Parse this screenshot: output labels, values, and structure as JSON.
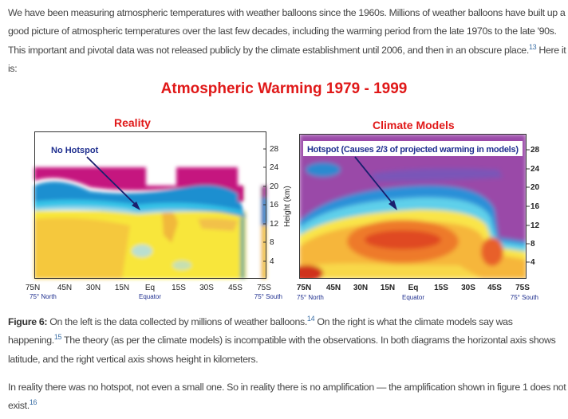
{
  "intro": {
    "text": "We have been measuring atmospheric temperatures with weather balloons since the 1960s. Millions of weather balloons have built up a good picture of atmospheric temperatures over the last few decades, including the warming period from the late 1970s to the late '90s. This important and pivotal data was not released publicly by the climate establishment until 2006, and then in an obscure place.",
    "ref": "13",
    "tail": " Here it is:"
  },
  "figure": {
    "title": "Atmospheric Warming 1979 - 1999",
    "left": {
      "title": "Reality",
      "annotation": "No Hotspot",
      "y_ticks": [
        "28",
        "24",
        "20",
        "16",
        "12",
        "8",
        "4"
      ],
      "y_label": "Height (km)",
      "x_ticks": [
        "75N",
        "45N",
        "30N",
        "15N",
        "Eq",
        "15S",
        "30S",
        "45S",
        "75S"
      ],
      "x_sub": {
        "north": "75° North",
        "equator": "Equator",
        "south": "75° South"
      }
    },
    "right": {
      "title": "Climate Models",
      "annotation": "Hotspot (Causes 2/3 of projected warming in models)",
      "y_ticks": [
        "28",
        "24",
        "20",
        "16",
        "12",
        "8",
        "4"
      ],
      "x_ticks": [
        "75N",
        "45N",
        "30N",
        "15N",
        "Eq",
        "15S",
        "30S",
        "45S",
        "75S"
      ],
      "x_sub": {
        "north": "75° North",
        "equator": "Equator",
        "south": "75° South"
      }
    },
    "colors": {
      "title": "#e01818",
      "annotation": "#1f2f8f"
    }
  },
  "caption": {
    "label": "Figure 6:",
    "text1": " On the left is the data collected by millions of weather balloons.",
    "ref1": "14",
    "text2": " On the right is what the climate models say was happening.",
    "ref2": "15",
    "text3": " The theory (as per the climate models) is incompatible with the observations. In both diagrams the horizontal axis shows latitude, and the right vertical axis shows height in kilometers."
  },
  "conclusion": {
    "text": "In reality there was no hotspot, not even a small one. So in reality there is no amplification — the amplification shown in figure 1 does not exist.",
    "ref": "16"
  }
}
